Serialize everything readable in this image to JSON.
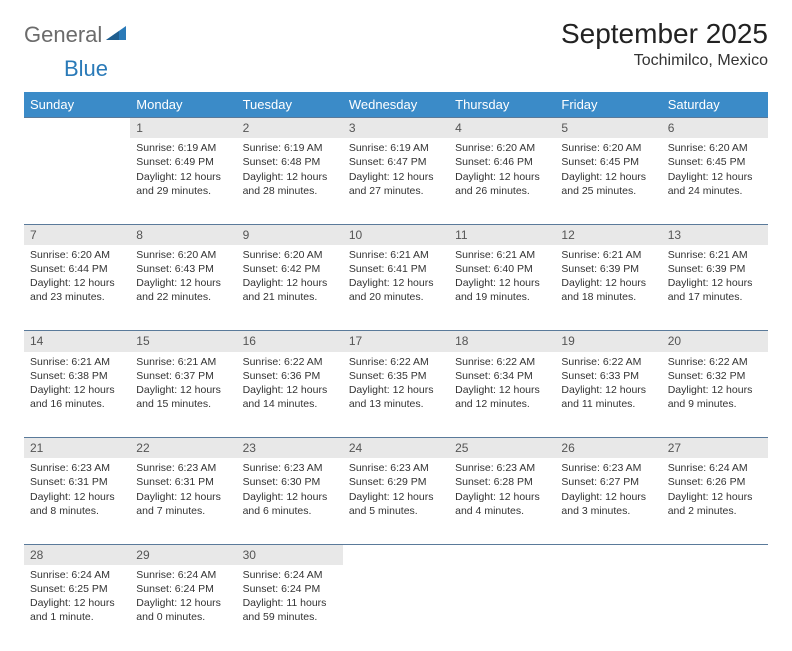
{
  "logo": {
    "general": "General",
    "blue": "Blue"
  },
  "title": {
    "month_year": "September 2025",
    "location": "Tochimilco, Mexico"
  },
  "colors": {
    "header_bg": "#3b8bc8",
    "header_fg": "#ffffff",
    "daynum_bg": "#e8e8e8",
    "row_border": "#5a7a9a",
    "text": "#333333",
    "logo_gray": "#6b6b6b",
    "logo_blue": "#2a7ab8"
  },
  "day_headers": [
    "Sunday",
    "Monday",
    "Tuesday",
    "Wednesday",
    "Thursday",
    "Friday",
    "Saturday"
  ],
  "weeks": [
    {
      "nums": [
        "",
        "1",
        "2",
        "3",
        "4",
        "5",
        "6"
      ],
      "cells": [
        [],
        [
          "Sunrise: 6:19 AM",
          "Sunset: 6:49 PM",
          "Daylight: 12 hours",
          "and 29 minutes."
        ],
        [
          "Sunrise: 6:19 AM",
          "Sunset: 6:48 PM",
          "Daylight: 12 hours",
          "and 28 minutes."
        ],
        [
          "Sunrise: 6:19 AM",
          "Sunset: 6:47 PM",
          "Daylight: 12 hours",
          "and 27 minutes."
        ],
        [
          "Sunrise: 6:20 AM",
          "Sunset: 6:46 PM",
          "Daylight: 12 hours",
          "and 26 minutes."
        ],
        [
          "Sunrise: 6:20 AM",
          "Sunset: 6:45 PM",
          "Daylight: 12 hours",
          "and 25 minutes."
        ],
        [
          "Sunrise: 6:20 AM",
          "Sunset: 6:45 PM",
          "Daylight: 12 hours",
          "and 24 minutes."
        ]
      ]
    },
    {
      "nums": [
        "7",
        "8",
        "9",
        "10",
        "11",
        "12",
        "13"
      ],
      "cells": [
        [
          "Sunrise: 6:20 AM",
          "Sunset: 6:44 PM",
          "Daylight: 12 hours",
          "and 23 minutes."
        ],
        [
          "Sunrise: 6:20 AM",
          "Sunset: 6:43 PM",
          "Daylight: 12 hours",
          "and 22 minutes."
        ],
        [
          "Sunrise: 6:20 AM",
          "Sunset: 6:42 PM",
          "Daylight: 12 hours",
          "and 21 minutes."
        ],
        [
          "Sunrise: 6:21 AM",
          "Sunset: 6:41 PM",
          "Daylight: 12 hours",
          "and 20 minutes."
        ],
        [
          "Sunrise: 6:21 AM",
          "Sunset: 6:40 PM",
          "Daylight: 12 hours",
          "and 19 minutes."
        ],
        [
          "Sunrise: 6:21 AM",
          "Sunset: 6:39 PM",
          "Daylight: 12 hours",
          "and 18 minutes."
        ],
        [
          "Sunrise: 6:21 AM",
          "Sunset: 6:39 PM",
          "Daylight: 12 hours",
          "and 17 minutes."
        ]
      ]
    },
    {
      "nums": [
        "14",
        "15",
        "16",
        "17",
        "18",
        "19",
        "20"
      ],
      "cells": [
        [
          "Sunrise: 6:21 AM",
          "Sunset: 6:38 PM",
          "Daylight: 12 hours",
          "and 16 minutes."
        ],
        [
          "Sunrise: 6:21 AM",
          "Sunset: 6:37 PM",
          "Daylight: 12 hours",
          "and 15 minutes."
        ],
        [
          "Sunrise: 6:22 AM",
          "Sunset: 6:36 PM",
          "Daylight: 12 hours",
          "and 14 minutes."
        ],
        [
          "Sunrise: 6:22 AM",
          "Sunset: 6:35 PM",
          "Daylight: 12 hours",
          "and 13 minutes."
        ],
        [
          "Sunrise: 6:22 AM",
          "Sunset: 6:34 PM",
          "Daylight: 12 hours",
          "and 12 minutes."
        ],
        [
          "Sunrise: 6:22 AM",
          "Sunset: 6:33 PM",
          "Daylight: 12 hours",
          "and 11 minutes."
        ],
        [
          "Sunrise: 6:22 AM",
          "Sunset: 6:32 PM",
          "Daylight: 12 hours",
          "and 9 minutes."
        ]
      ]
    },
    {
      "nums": [
        "21",
        "22",
        "23",
        "24",
        "25",
        "26",
        "27"
      ],
      "cells": [
        [
          "Sunrise: 6:23 AM",
          "Sunset: 6:31 PM",
          "Daylight: 12 hours",
          "and 8 minutes."
        ],
        [
          "Sunrise: 6:23 AM",
          "Sunset: 6:31 PM",
          "Daylight: 12 hours",
          "and 7 minutes."
        ],
        [
          "Sunrise: 6:23 AM",
          "Sunset: 6:30 PM",
          "Daylight: 12 hours",
          "and 6 minutes."
        ],
        [
          "Sunrise: 6:23 AM",
          "Sunset: 6:29 PM",
          "Daylight: 12 hours",
          "and 5 minutes."
        ],
        [
          "Sunrise: 6:23 AM",
          "Sunset: 6:28 PM",
          "Daylight: 12 hours",
          "and 4 minutes."
        ],
        [
          "Sunrise: 6:23 AM",
          "Sunset: 6:27 PM",
          "Daylight: 12 hours",
          "and 3 minutes."
        ],
        [
          "Sunrise: 6:24 AM",
          "Sunset: 6:26 PM",
          "Daylight: 12 hours",
          "and 2 minutes."
        ]
      ]
    },
    {
      "nums": [
        "28",
        "29",
        "30",
        "",
        "",
        "",
        ""
      ],
      "cells": [
        [
          "Sunrise: 6:24 AM",
          "Sunset: 6:25 PM",
          "Daylight: 12 hours",
          "and 1 minute."
        ],
        [
          "Sunrise: 6:24 AM",
          "Sunset: 6:24 PM",
          "Daylight: 12 hours",
          "and 0 minutes."
        ],
        [
          "Sunrise: 6:24 AM",
          "Sunset: 6:24 PM",
          "Daylight: 11 hours",
          "and 59 minutes."
        ],
        [],
        [],
        [],
        []
      ]
    }
  ]
}
